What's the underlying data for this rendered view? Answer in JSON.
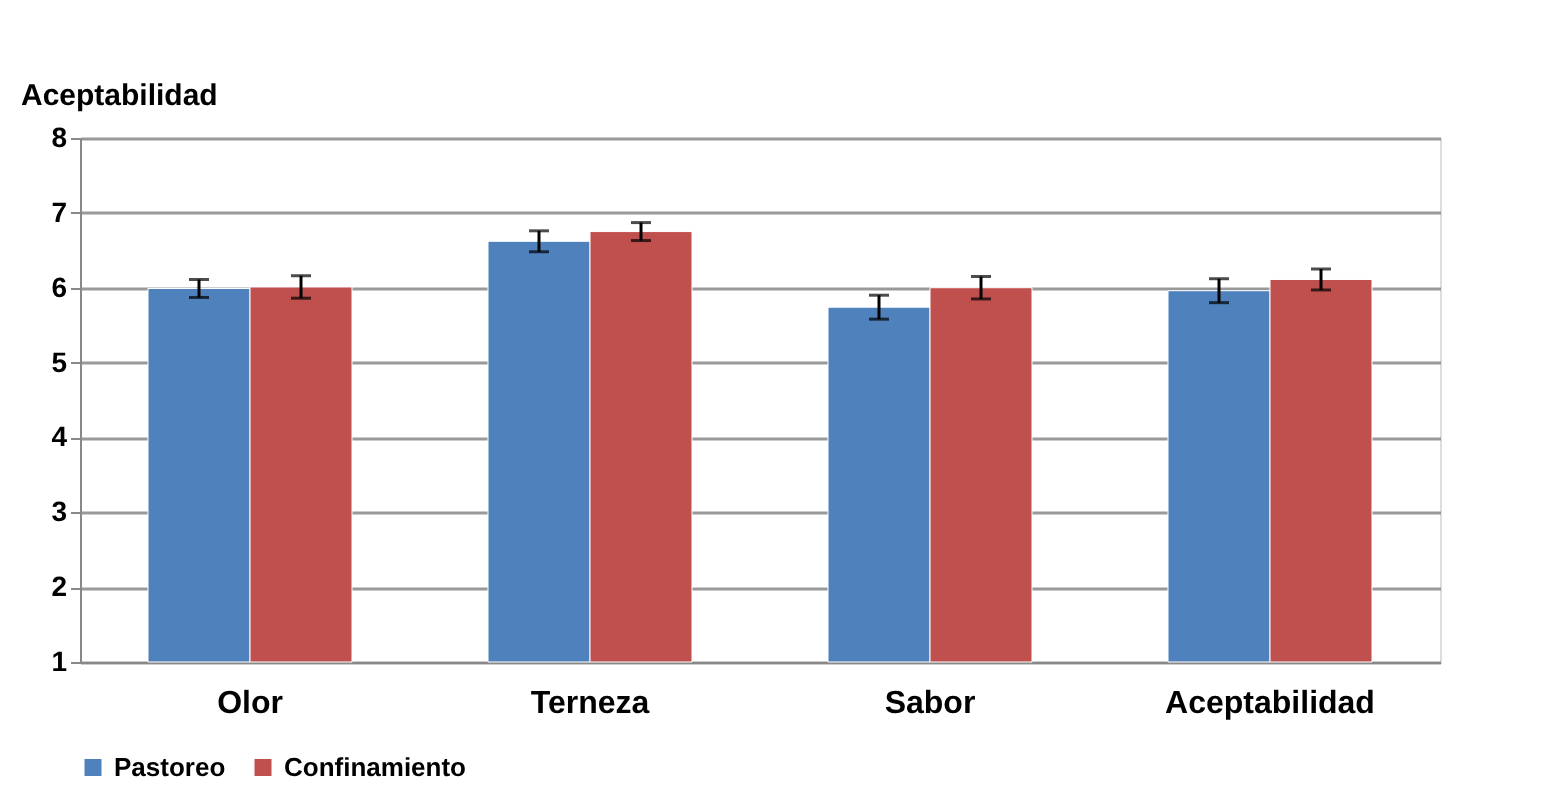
{
  "chart_data": {
    "type": "bar",
    "ylabel": "Aceptabilidad",
    "categories": [
      "Olor",
      "Terneza",
      "Sabor",
      "Aceptabilidad"
    ],
    "series": [
      {
        "name": "Pastoreo",
        "color": "#4f81bd",
        "values": [
          5.99,
          6.62,
          5.74,
          5.96
        ],
        "errors": [
          0.12,
          0.14,
          0.16,
          0.16
        ]
      },
      {
        "name": "Confinamiento",
        "color": "#c0504d",
        "values": [
          6.01,
          6.75,
          6.0,
          6.11
        ],
        "errors": [
          0.15,
          0.12,
          0.15,
          0.14
        ]
      }
    ],
    "ylim": [
      1,
      8
    ],
    "yticks": [
      1,
      2,
      3,
      4,
      5,
      6,
      7,
      8
    ],
    "grid": "y",
    "legend": "bottom"
  }
}
